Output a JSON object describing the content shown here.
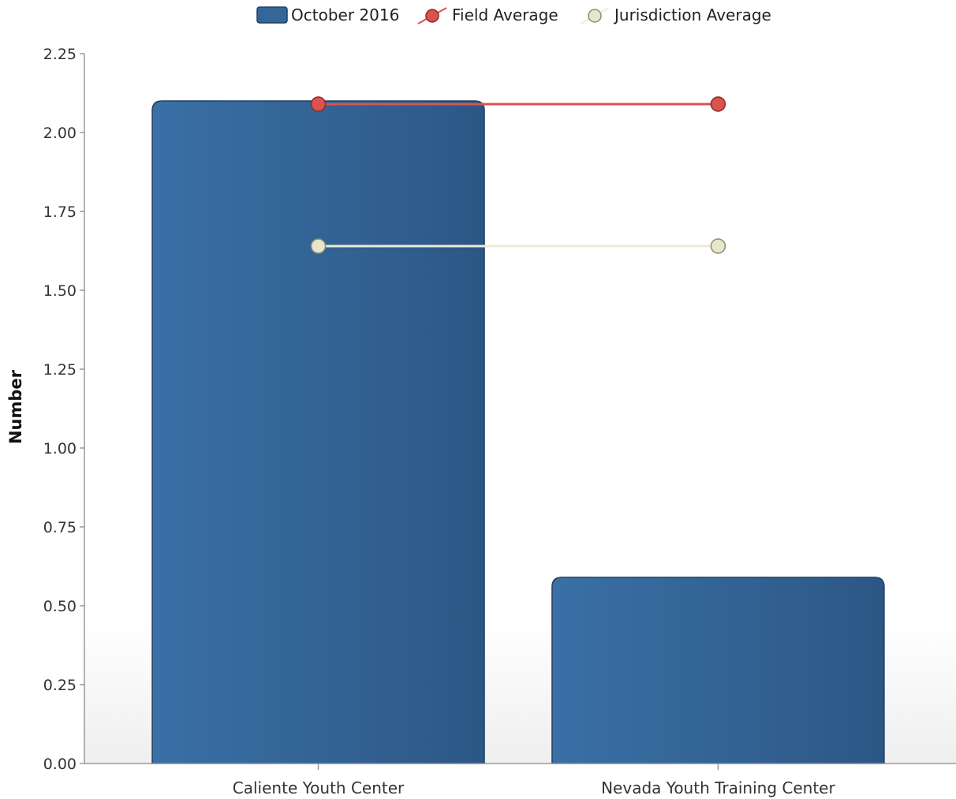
{
  "chart_data": {
    "type": "bar",
    "categories": [
      "Caliente Youth Center",
      "Nevada Youth Training Center"
    ],
    "series": [
      {
        "name": "October 2016",
        "kind": "bar",
        "values": [
          2.1,
          0.59
        ]
      },
      {
        "name": "Field Average",
        "kind": "line",
        "values": [
          2.09,
          2.09
        ]
      },
      {
        "name": "Jurisdiction Average",
        "kind": "line",
        "values": [
          1.64,
          1.64
        ]
      }
    ],
    "ylabel": "Number",
    "ylim": [
      0,
      2.25
    ],
    "yticks": [
      0,
      0.25,
      0.5,
      0.75,
      1,
      1.25,
      1.5,
      1.75,
      2,
      2.25
    ],
    "ytick_labels": [
      "0.00",
      "0.25",
      "0.50",
      "0.75",
      "1.00",
      "1.25",
      "1.50",
      "1.75",
      "2.00",
      "2.25"
    ],
    "legend": {
      "position": "top-center"
    },
    "colors": {
      "bar": "#336699",
      "field_average": "#d9534f",
      "jurisdiction_average": "#e6e6cc"
    }
  }
}
